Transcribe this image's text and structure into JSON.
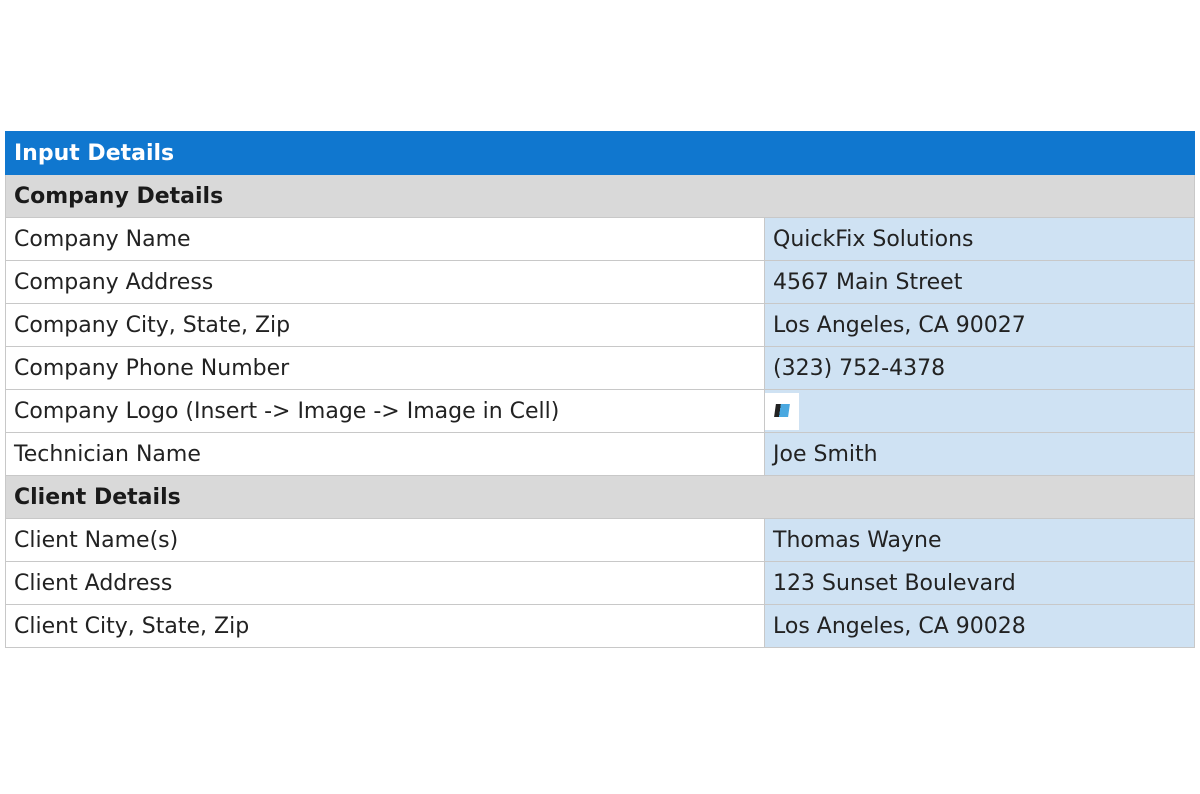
{
  "title": "Input Details",
  "sections": [
    {
      "heading": "Company Details",
      "rows": [
        {
          "label": "Company Name",
          "value": "QuickFix Solutions"
        },
        {
          "label": "Company Address",
          "value": "4567 Main Street"
        },
        {
          "label": "Company City, State, Zip",
          "value": "Los Angeles, CA 90027"
        },
        {
          "label": "Company Phone Number",
          "value": "(323) 752-4378"
        },
        {
          "label": "Company Logo (Insert -> Image -> Image in Cell)",
          "value": null,
          "icon": "logo-image"
        },
        {
          "label": "Technician Name",
          "value": "Joe Smith"
        }
      ]
    },
    {
      "heading": "Client Details",
      "rows": [
        {
          "label": "Client Name(s)",
          "value": "Thomas Wayne"
        },
        {
          "label": "Client Address",
          "value": "123 Sunset Boulevard"
        },
        {
          "label": "Client City, State, Zip",
          "value": "Los Angeles, CA 90028"
        }
      ]
    }
  ],
  "colors": {
    "title_bg": "#1077cf",
    "section_bg": "#d9d9d9",
    "input_bg": "#cfe2f3"
  }
}
